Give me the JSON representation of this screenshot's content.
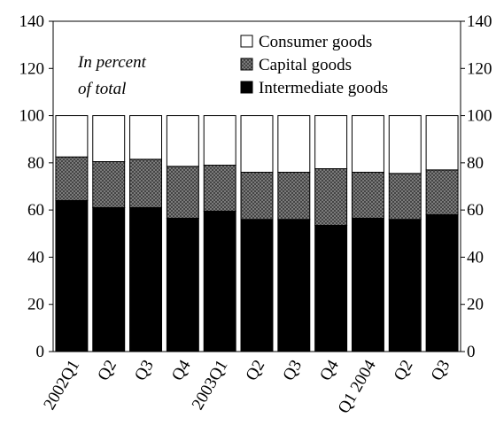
{
  "chart_data": {
    "type": "bar",
    "stacked": true,
    "annotation": [
      "In percent",
      "of total"
    ],
    "categories": [
      "2002Q1",
      "Q2",
      "Q3",
      "Q4",
      "2003Q1",
      "Q2",
      "Q3",
      "Q4",
      "Q1 2004",
      "Q2",
      "Q3"
    ],
    "series": [
      {
        "name": "Intermediate goods",
        "color": "#000000",
        "pattern": "solid",
        "values": [
          64,
          61,
          61,
          56.5,
          59.5,
          56,
          56,
          53.5,
          56.5,
          56,
          58
        ]
      },
      {
        "name": "Capital goods",
        "color": "#666666",
        "pattern": "crosshatch",
        "values": [
          18.5,
          19.5,
          20.5,
          22,
          19.5,
          20,
          20,
          24,
          19.5,
          19.5,
          19
        ]
      },
      {
        "name": "Consumer goods",
        "color": "#ffffff",
        "pattern": "blank",
        "values": [
          17.5,
          19.5,
          18.5,
          21.5,
          21,
          24,
          24,
          22.5,
          24,
          24.5,
          23
        ]
      }
    ],
    "legend_order": [
      "Consumer goods",
      "Capital goods",
      "Intermediate goods"
    ],
    "yticks": [
      0,
      20,
      40,
      60,
      80,
      100,
      120,
      140
    ],
    "ylim": [
      0,
      140
    ],
    "grid": false,
    "legend_position": "top-right",
    "dual_y_axis": true
  }
}
